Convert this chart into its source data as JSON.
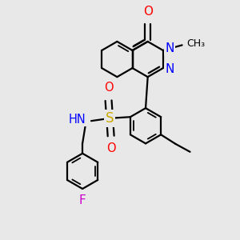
{
  "bg_color": "#e8e8e8",
  "bond_color": "#000000",
  "bond_width": 1.6,
  "figsize": [
    3.0,
    3.0
  ],
  "dpi": 100,
  "colors": {
    "C": "#000000",
    "N": "#0000ff",
    "O": "#ff0000",
    "S": "#ccaa00",
    "F": "#cc00cc",
    "H": "#666666"
  }
}
